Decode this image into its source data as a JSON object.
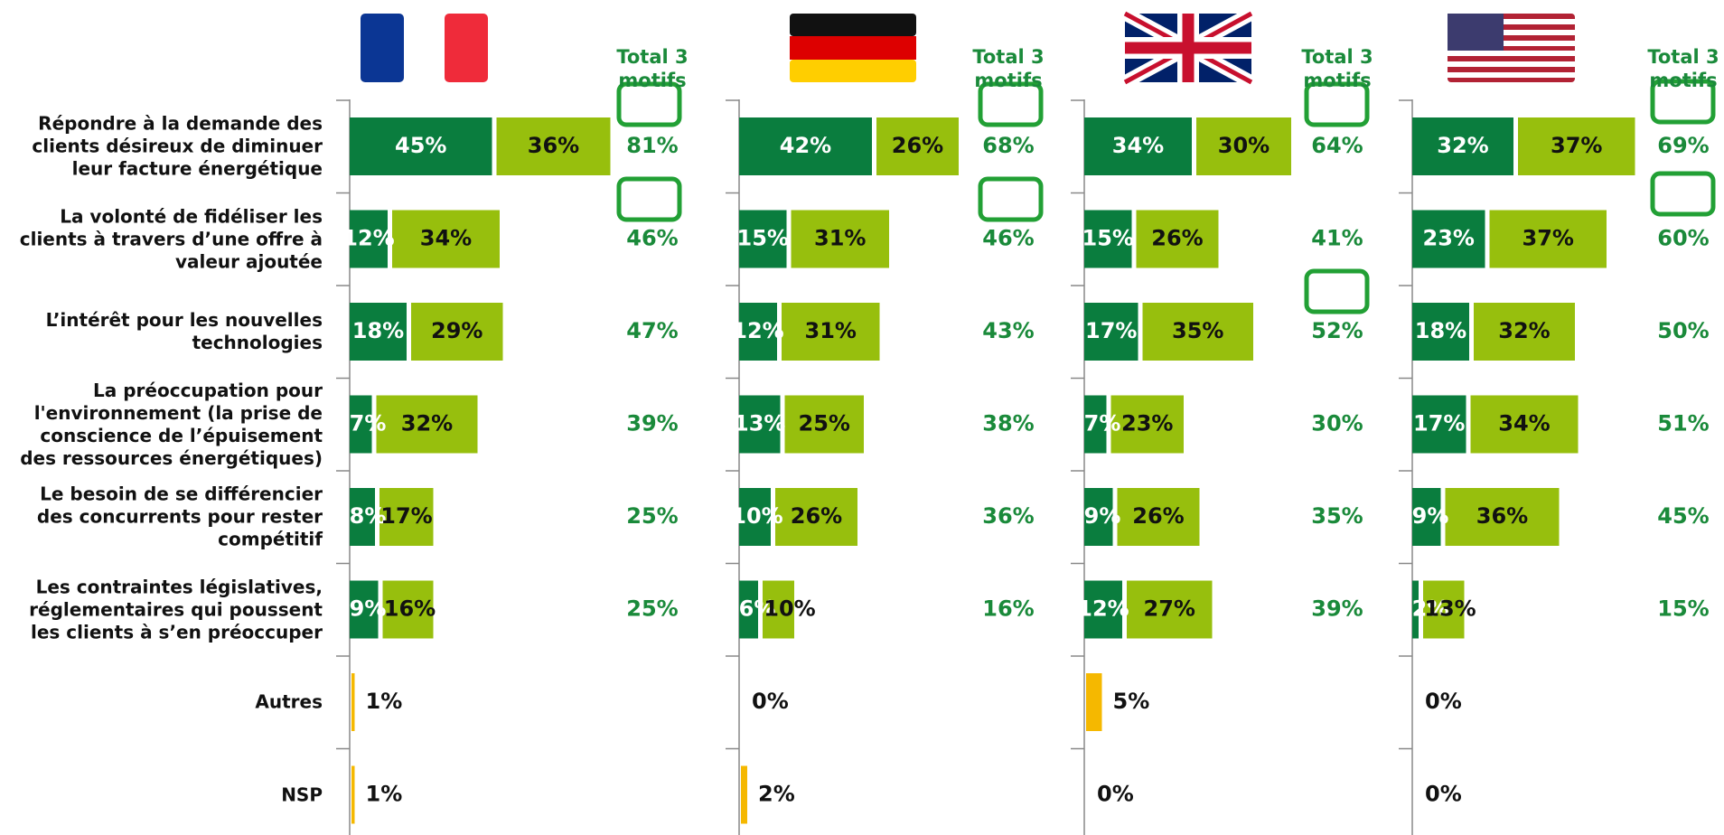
{
  "chart_data": {
    "type": "bar",
    "categories": [
      "Répondre à la demande des clients désireux de diminuer leur facture énergétique",
      "La volonté de fidéliser les clients à travers d’une offre à valeur ajoutée",
      "L’intérêt pour les nouvelles technologies",
      "La préoccupation pour l'environnement (la prise de conscience de l’épuisement des ressources énergétiques)",
      "Le besoin de se différencier des concurrents pour rester compétitif",
      "Les contraintes législatives, réglementaires qui poussent les clients à s’en préoccuper",
      "Autres",
      "NSP"
    ],
    "panels": [
      {
        "total_label": "Total 3 motifs",
        "series": [
          {
            "color": "#0a7d3e",
            "values": [
              45,
              12,
              18,
              7,
              8,
              9,
              null,
              null
            ],
            "value_labels": [
              "45%",
              "12%",
              "18%",
              "7%",
              "8%",
              "9%",
              null,
              null
            ]
          },
          {
            "color": "#97bf0d",
            "values": [
              36,
              34,
              29,
              32,
              17,
              16,
              null,
              null
            ],
            "value_labels": [
              "36%",
              "34%",
              "29%",
              "32%",
              "17%",
              "16%",
              null,
              null
            ]
          },
          {
            "color": "#f5b800",
            "values": [
              null,
              null,
              null,
              null,
              null,
              null,
              1,
              1
            ],
            "value_labels": [
              null,
              null,
              null,
              null,
              null,
              null,
              "1%",
              "1%"
            ]
          }
        ],
        "totals": [
          81,
          46,
          47,
          39,
          25,
          25
        ],
        "total_labels": [
          "81%",
          "46%",
          "47%",
          "39%",
          "25%",
          "25%"
        ]
      },
      {
        "total_label": "Total 3 motifs",
        "series": [
          {
            "color": "#0a7d3e",
            "values": [
              42,
              15,
              12,
              13,
              10,
              6,
              null,
              null
            ],
            "value_labels": [
              "42%",
              "15%",
              "12%",
              "13%",
              "10%",
              "6%",
              null,
              null
            ]
          },
          {
            "color": "#97bf0d",
            "values": [
              26,
              31,
              31,
              25,
              26,
              10,
              null,
              null
            ],
            "value_labels": [
              "26%",
              "31%",
              "31%",
              "25%",
              "26%",
              "10%",
              null,
              null
            ]
          },
          {
            "color": "#f5b800",
            "values": [
              null,
              null,
              null,
              null,
              null,
              null,
              0,
              2
            ],
            "value_labels": [
              null,
              null,
              null,
              null,
              null,
              null,
              "0%",
              "2%"
            ]
          }
        ],
        "totals": [
          68,
          46,
          43,
          38,
          36,
          16
        ],
        "total_labels": [
          "68%",
          "46%",
          "43%",
          "38%",
          "36%",
          "16%"
        ]
      },
      {
        "total_label": "Total 3 motifs",
        "series": [
          {
            "color": "#0a7d3e",
            "values": [
              34,
              15,
              17,
              7,
              9,
              12,
              null,
              null
            ],
            "value_labels": [
              "34%",
              "15%",
              "17%",
              "7%",
              "9%",
              "12%",
              null,
              null
            ]
          },
          {
            "color": "#97bf0d",
            "values": [
              30,
              26,
              35,
              23,
              26,
              27,
              null,
              null
            ],
            "value_labels": [
              "30%",
              "26%",
              "35%",
              "23%",
              "26%",
              "27%",
              null,
              null
            ]
          },
          {
            "color": "#f5b800",
            "values": [
              null,
              null,
              null,
              null,
              null,
              null,
              5,
              0
            ],
            "value_labels": [
              null,
              null,
              null,
              null,
              null,
              null,
              "5%",
              "0%"
            ]
          }
        ],
        "totals": [
          64,
          41,
          52,
          30,
          35,
          39
        ],
        "total_labels": [
          "64%",
          "41%",
          "52%",
          "30%",
          "35%",
          "39%"
        ]
      },
      {
        "total_label": "Total 3 motifs",
        "series": [
          {
            "color": "#0a7d3e",
            "values": [
              32,
              23,
              18,
              17,
              9,
              2,
              null,
              null
            ],
            "value_labels": [
              "32%",
              "23%",
              "18%",
              "17%",
              "9%",
              "2%",
              null,
              null
            ]
          },
          {
            "color": "#97bf0d",
            "values": [
              37,
              37,
              32,
              34,
              36,
              13,
              null,
              null
            ],
            "value_labels": [
              "37%",
              "37%",
              "32%",
              "34%",
              "36%",
              "13%",
              null,
              null
            ]
          },
          {
            "color": "#f5b800",
            "values": [
              null,
              null,
              null,
              null,
              null,
              null,
              0,
              0
            ],
            "value_labels": [
              null,
              null,
              null,
              null,
              null,
              null,
              "0%",
              "0%"
            ]
          }
        ],
        "totals": [
          69,
          60,
          50,
          51,
          45,
          15
        ],
        "total_labels": [
          "69%",
          "60%",
          "50%",
          "51%",
          "45%",
          "15%"
        ]
      }
    ]
  }
}
